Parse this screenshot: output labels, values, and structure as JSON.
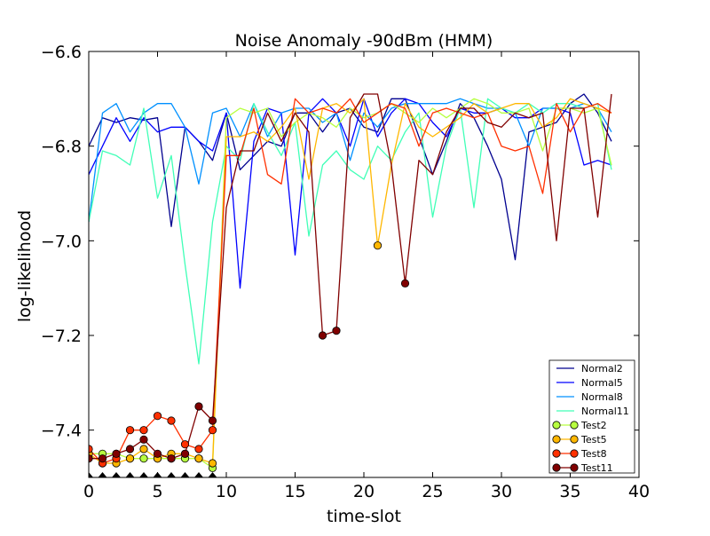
{
  "chart_data": {
    "type": "line",
    "title": "Noise Anomaly -90dBm (HMM)",
    "xlabel": "time-slot",
    "ylabel": "log-likelihood",
    "xlim": [
      0,
      40
    ],
    "ylim": [
      -7.5,
      -6.6
    ],
    "xticks": [
      0,
      5,
      10,
      15,
      20,
      25,
      30,
      35,
      40
    ],
    "yticks": [
      -7.4,
      -7.2,
      -7.0,
      -6.8,
      -6.6
    ],
    "xtick_labels": [
      "0",
      "5",
      "10",
      "15",
      "20",
      "25",
      "30",
      "35",
      "40"
    ],
    "ytick_labels": [
      "−7.4",
      "−7.2",
      "−7.0",
      "−6.8",
      "−6.6"
    ],
    "grid": false,
    "legend_position": "lower-right",
    "series": [
      {
        "name": "Normal2",
        "color": "#00008f",
        "marker": false,
        "values": [
          -6.8,
          -6.74,
          -6.75,
          -6.74,
          -6.745,
          -6.74,
          -6.97,
          -6.76,
          -6.79,
          -6.83,
          -6.73,
          -6.85,
          -6.82,
          -6.79,
          -6.8,
          -6.73,
          -6.73,
          -6.77,
          -6.73,
          -6.72,
          -6.76,
          -6.77,
          -6.7,
          -6.7,
          -6.78,
          -6.86,
          -6.79,
          -6.71,
          -6.74,
          -6.8,
          -6.87,
          -7.04,
          -6.77,
          -6.76,
          -6.75,
          -6.71,
          -6.69,
          -6.73,
          -6.79
        ]
      },
      {
        "name": "Normal5",
        "color": "#0000ff",
        "marker": false,
        "values": [
          -6.86,
          -6.8,
          -6.74,
          -6.79,
          -6.74,
          -6.77,
          -6.76,
          -6.76,
          -6.79,
          -6.81,
          -6.73,
          -7.1,
          -6.79,
          -6.72,
          -6.73,
          -7.03,
          -6.73,
          -6.7,
          -6.73,
          -6.8,
          -6.7,
          -6.78,
          -6.73,
          -6.7,
          -6.71,
          -6.75,
          -6.78,
          -6.72,
          -6.73,
          -6.73,
          -6.72,
          -6.74,
          -6.74,
          -6.72,
          -6.72,
          -6.73,
          -6.84,
          -6.83,
          -6.84
        ]
      },
      {
        "name": "Normal8",
        "color": "#0090ff",
        "marker": false,
        "values": [
          -6.96,
          -6.73,
          -6.71,
          -6.77,
          -6.73,
          -6.71,
          -6.71,
          -6.76,
          -6.88,
          -6.73,
          -6.72,
          -6.78,
          -6.71,
          -6.78,
          -6.73,
          -6.72,
          -6.72,
          -6.75,
          -6.73,
          -6.83,
          -6.73,
          -6.76,
          -6.72,
          -6.71,
          -6.71,
          -6.71,
          -6.71,
          -6.7,
          -6.71,
          -6.72,
          -6.72,
          -6.73,
          -6.8,
          -6.72,
          -6.72,
          -6.72,
          -6.71,
          -6.72,
          -6.77
        ]
      },
      {
        "name": "Normal11",
        "color": "#40ffb7",
        "marker": false,
        "values": [
          -6.96,
          -6.81,
          -6.82,
          -6.84,
          -6.72,
          -6.91,
          -6.82,
          -7.05,
          -7.26,
          -6.96,
          -6.8,
          -6.83,
          -6.71,
          -6.77,
          -6.82,
          -6.75,
          -6.99,
          -6.84,
          -6.81,
          -6.85,
          -6.87,
          -6.8,
          -6.83,
          -6.77,
          -6.73,
          -6.95,
          -6.8,
          -6.72,
          -6.93,
          -6.7,
          -6.72,
          -6.73,
          -6.71,
          -6.73,
          -6.71,
          -6.71,
          -6.72,
          -6.71,
          -6.85
        ]
      },
      {
        "name": "Test2",
        "color": "#b7ff40",
        "marker": true,
        "markers_upto": 9,
        "values": [
          -7.45,
          -7.45,
          -7.45,
          -7.46,
          -7.46,
          -7.46,
          -7.46,
          -7.46,
          -7.46,
          -7.48,
          -6.74,
          -6.72,
          -6.73,
          -6.72,
          -6.78,
          -6.75,
          -6.73,
          -6.74,
          -6.76,
          -6.72,
          -6.74,
          -6.73,
          -6.71,
          -6.73,
          -6.75,
          -6.72,
          -6.74,
          -6.72,
          -6.7,
          -6.71,
          -6.73,
          -6.73,
          -6.72,
          -6.81,
          -6.72,
          -6.72,
          -6.73,
          -6.72,
          -6.84
        ]
      },
      {
        "name": "Test5",
        "color": "#ffb700",
        "marker": true,
        "markers_upto": 9,
        "extra_markers": [
          21
        ],
        "values": [
          -7.45,
          -7.47,
          -7.47,
          -7.46,
          -7.44,
          -7.46,
          -7.45,
          -7.45,
          -7.46,
          -7.47,
          -6.78,
          -6.78,
          -6.77,
          -6.79,
          -6.76,
          -6.72,
          -6.87,
          -6.72,
          -6.71,
          -6.73,
          -6.7,
          -7.01,
          -6.84,
          -6.71,
          -6.76,
          -6.78,
          -6.76,
          -6.74,
          -6.71,
          -6.73,
          -6.72,
          -6.71,
          -6.71,
          -6.76,
          -6.74,
          -6.7,
          -6.71,
          -6.72,
          -6.73
        ]
      },
      {
        "name": "Test8",
        "color": "#ff3000",
        "marker": true,
        "markers_upto": 9,
        "values": [
          -7.44,
          -7.47,
          -7.46,
          -7.4,
          -7.4,
          -7.37,
          -7.38,
          -7.43,
          -7.44,
          -7.4,
          -6.82,
          -6.82,
          -6.72,
          -6.86,
          -6.88,
          -6.7,
          -6.73,
          -6.72,
          -6.73,
          -6.7,
          -6.75,
          -6.73,
          -6.71,
          -6.72,
          -6.8,
          -6.73,
          -6.72,
          -6.73,
          -6.74,
          -6.73,
          -6.8,
          -6.81,
          -6.8,
          -6.9,
          -6.71,
          -6.77,
          -6.72,
          -6.71,
          -6.73
        ]
      },
      {
        "name": "Test11",
        "color": "#800000",
        "marker": true,
        "markers_upto": 9,
        "extra_markers": [
          17,
          18,
          23
        ],
        "values": [
          -7.46,
          -7.46,
          -7.45,
          -7.44,
          -7.42,
          -7.45,
          -7.46,
          -7.45,
          -7.35,
          -7.38,
          -6.93,
          -6.81,
          -6.81,
          -6.73,
          -6.79,
          -6.73,
          -6.77,
          -7.2,
          -7.19,
          -6.74,
          -6.69,
          -6.69,
          -6.84,
          -7.09,
          -6.83,
          -6.86,
          -6.77,
          -6.72,
          -6.72,
          -6.75,
          -6.76,
          -6.73,
          -6.74,
          -6.73,
          -7.0,
          -6.72,
          -6.72,
          -6.95,
          -6.69
        ]
      }
    ],
    "baseline_markers": {
      "color": "#000000",
      "y": -7.5,
      "x": [
        0,
        1,
        2,
        3,
        4,
        5,
        6,
        7,
        8,
        9
      ]
    }
  }
}
